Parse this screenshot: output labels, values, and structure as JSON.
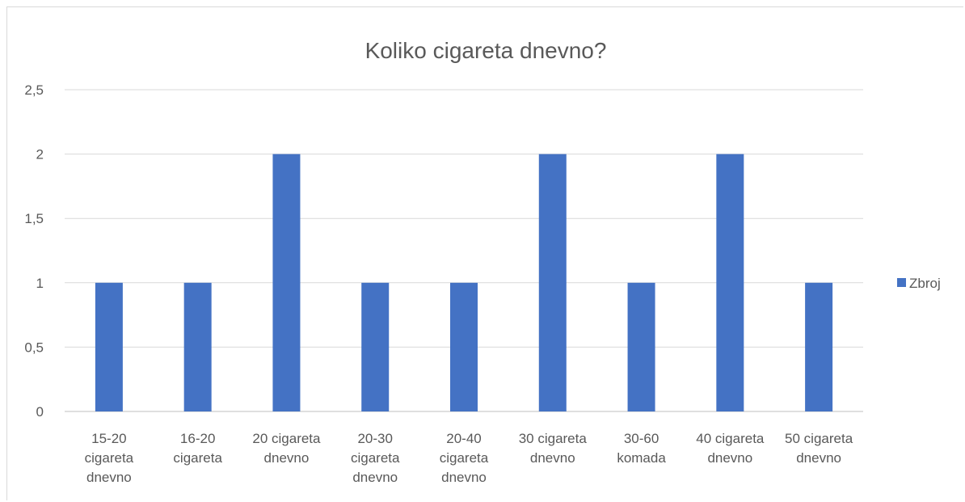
{
  "chart_data": {
    "type": "bar",
    "title": "Koliko cigareta dnevno?",
    "xlabel": "",
    "ylabel": "",
    "categories": [
      "15-20 cigareta dnevno",
      "16-20 cigareta",
      "20 cigareta dnevno",
      "20-30 cigareta dnevno",
      "20-40 cigareta dnevno",
      "30 cigareta dnevno",
      "30-60 komada",
      "40 cigareta dnevno",
      "50 cigareta dnevno"
    ],
    "category_lines": [
      [
        "15-20",
        "cigareta",
        "dnevno"
      ],
      [
        "16-20",
        "cigareta"
      ],
      [
        "20 cigareta",
        "dnevno"
      ],
      [
        "20-30",
        "cigareta",
        "dnevno"
      ],
      [
        "20-40",
        "cigareta",
        "dnevno"
      ],
      [
        "30 cigareta",
        "dnevno"
      ],
      [
        "30-60",
        "komada"
      ],
      [
        "40 cigareta",
        "dnevno"
      ],
      [
        "50 cigareta",
        "dnevno"
      ]
    ],
    "series": [
      {
        "name": "Zbroj",
        "color": "#4472c4",
        "values": [
          1,
          1,
          2,
          1,
          1,
          2,
          1,
          2,
          1
        ]
      }
    ],
    "ylim": [
      0,
      2.5
    ],
    "yticks": [
      0,
      0.5,
      1,
      1.5,
      2,
      2.5
    ],
    "ytick_labels": [
      "0",
      "0,5",
      "1",
      "1,5",
      "2",
      "2,5"
    ],
    "grid": true,
    "legend_position": "right"
  }
}
